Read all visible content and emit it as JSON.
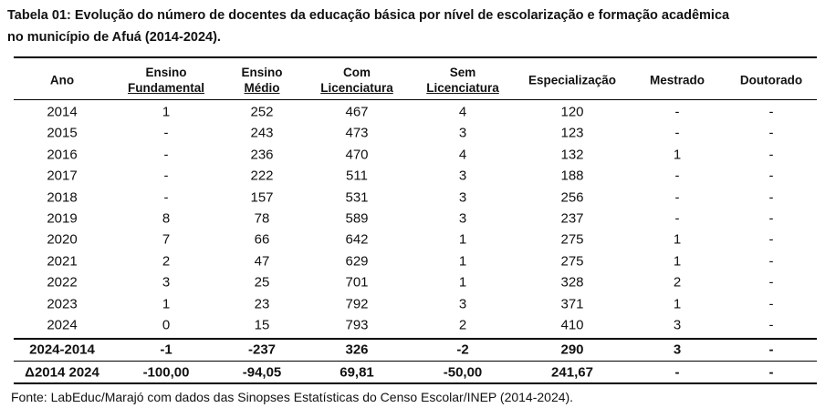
{
  "title": [
    "Tabela 01: Evolução do número de docentes da educação básica por nível de escolarização e formação acadêmica",
    "no município de Afuá (2014-2024)."
  ],
  "table": {
    "headers": [
      [
        "Ano"
      ],
      [
        "Ensino",
        "Fundamental"
      ],
      [
        "Ensino",
        "Médio"
      ],
      [
        "Com",
        "Licenciatura"
      ],
      [
        "Sem",
        "Licenciatura"
      ],
      [
        "Especialização"
      ],
      [
        "Mestrado"
      ],
      [
        "Doutorado"
      ]
    ],
    "rows": [
      [
        "2014",
        "1",
        "252",
        "467",
        "4",
        "120",
        "-",
        "-"
      ],
      [
        "2015",
        "-",
        "243",
        "473",
        "3",
        "123",
        "-",
        "-"
      ],
      [
        "2016",
        "-",
        "236",
        "470",
        "4",
        "132",
        "1",
        "-"
      ],
      [
        "2017",
        "-",
        "222",
        "511",
        "3",
        "188",
        "-",
        "-"
      ],
      [
        "2018",
        "-",
        "157",
        "531",
        "3",
        "256",
        "-",
        "-"
      ],
      [
        "2019",
        "8",
        "78",
        "589",
        "3",
        "237",
        "-",
        "-"
      ],
      [
        "2020",
        "7",
        "66",
        "642",
        "1",
        "275",
        "1",
        "-"
      ],
      [
        "2021",
        "2",
        "47",
        "629",
        "1",
        "275",
        "1",
        "-"
      ],
      [
        "2022",
        "3",
        "25",
        "701",
        "1",
        "328",
        "2",
        "-"
      ],
      [
        "2023",
        "1",
        "23",
        "792",
        "3",
        "371",
        "1",
        "-"
      ],
      [
        "2024",
        "0",
        "15",
        "793",
        "2",
        "410",
        "3",
        "-"
      ]
    ],
    "summary": [
      [
        "2024-2014",
        "-1",
        "-237",
        "326",
        "-2",
        "290",
        "3",
        "-"
      ],
      [
        "Δ2014 2024",
        "-100,00",
        "-94,05",
        "69,81",
        "-50,00",
        "241,67",
        "-",
        "-"
      ]
    ]
  },
  "source": "Fonte: LabEduc/Marajó com dados das Sinopses Estatísticas do Censo Escolar/INEP (2014-2024)."
}
